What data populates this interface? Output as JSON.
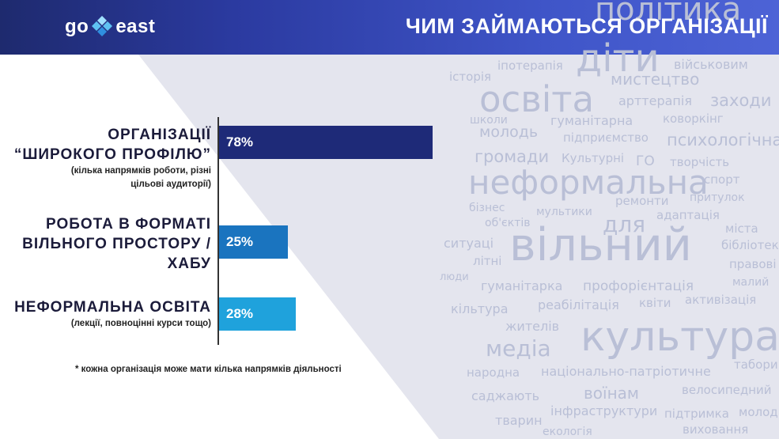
{
  "header": {
    "logo_left": "go",
    "logo_right": "east",
    "title": "ЧИМ ЗАЙМАЮТЬСЯ ОРГАНІЗАЦІЇ"
  },
  "colors": {
    "bar_1": "#1e2a78",
    "bar_2": "#1a74bf",
    "bar_3": "#1fa2dc",
    "cloud_text": "#b9bfd6"
  },
  "chart_data": {
    "type": "bar",
    "orientation": "horizontal",
    "categories": [
      {
        "main": [
          "ОРГАНІЗАЦІЇ",
          "“ШИРОКОГО ПРОФІЛЮ”"
        ],
        "sub": [
          "(кілька напрямків роботи, різні",
          "цільові аудиторії)"
        ]
      },
      {
        "main": [
          "РОБОТА В ФОРМАТІ",
          "ВІЛЬНОГО ПРОСТОРУ /",
          "ХАБУ"
        ],
        "sub": []
      },
      {
        "main": [
          "НЕФОРМАЛЬНА ОСВІТА"
        ],
        "sub": [
          "(лекції, повноцінні курси тощо)"
        ]
      }
    ],
    "values": [
      78,
      25,
      28
    ],
    "value_labels": [
      "78%",
      "25%",
      "28%"
    ],
    "xlim": [
      0,
      100
    ],
    "grid": false
  },
  "footnote": "* кожна організація може мати кілька напрямків діяльності",
  "word_cloud": [
    "політика",
    "діти",
    "іпотерапія",
    "військовим",
    "історія",
    "мистецтво",
    "освіта",
    "арттерапія",
    "заходи",
    "школи",
    "гуманітарна",
    "коворкінг",
    "молодь",
    "підприємство",
    "психологічна",
    "громади",
    "Культурні",
    "ГО",
    "творчість",
    "неформальна",
    "спорт",
    "притулок",
    "бізнес",
    "ремонти",
    "мультики",
    "адаптація",
    "об'єктів",
    "для",
    "міста",
    "ситуаці",
    "вільний",
    "бібліотек",
    "літні",
    "правові",
    "люди",
    "малий",
    "гуманітарка",
    "профорієнтація",
    "кільтура",
    "реабілітація",
    "квіти",
    "активізація",
    "жителів",
    "культура",
    "медіа",
    "народна",
    "національно-патріотичне",
    "табори",
    "воїнам",
    "велосипедний",
    "саджають",
    "інфраструктури",
    "підтримка",
    "молод",
    "тварин",
    "екологія",
    "виховання"
  ]
}
